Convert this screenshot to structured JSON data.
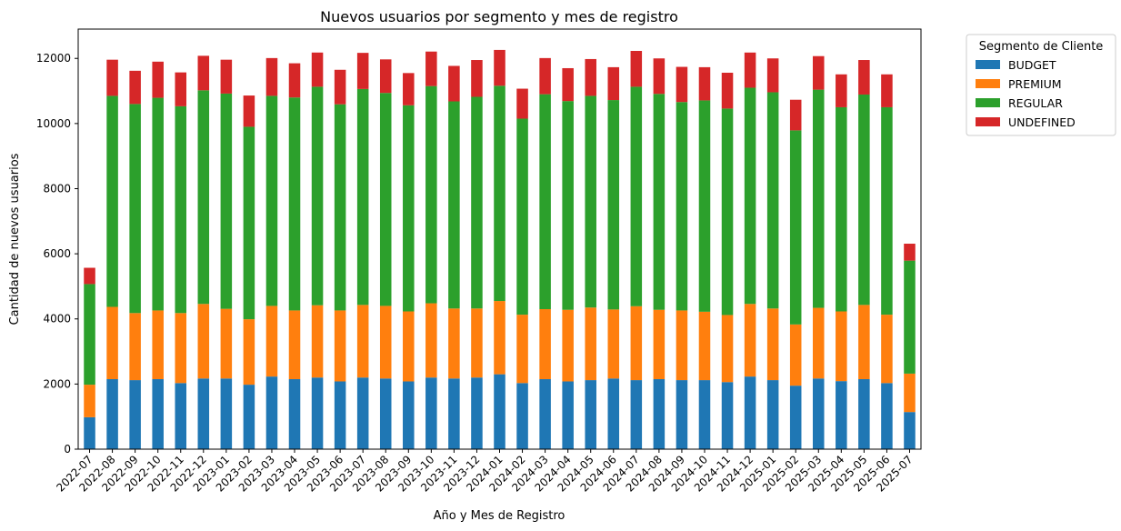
{
  "chart_data": {
    "type": "bar",
    "stacked": true,
    "title": "Nuevos usuarios por segmento y mes de registro",
    "xlabel": "Año y Mes de Registro",
    "ylabel": "Cantidad de nuevos usuarios",
    "ylim": [
      0,
      12900
    ],
    "yticks": [
      0,
      2000,
      4000,
      6000,
      8000,
      10000,
      12000
    ],
    "grid": false,
    "legend": {
      "title": "Segmento de Cliente",
      "placement": "outside-top-right"
    },
    "categories": [
      "2022-07",
      "2022-08",
      "2022-09",
      "2022-10",
      "2022-11",
      "2022-12",
      "2023-01",
      "2023-02",
      "2023-03",
      "2023-04",
      "2023-05",
      "2023-06",
      "2023-07",
      "2023-08",
      "2023-09",
      "2023-10",
      "2023-11",
      "2023-12",
      "2024-01",
      "2024-02",
      "2024-03",
      "2024-04",
      "2024-05",
      "2024-06",
      "2024-07",
      "2024-08",
      "2024-09",
      "2024-10",
      "2024-11",
      "2024-12",
      "2025-01",
      "2025-02",
      "2025-03",
      "2025-04",
      "2025-05",
      "2025-06",
      "2025-07"
    ],
    "series": [
      {
        "name": "BUDGET",
        "color": "#1f77b4",
        "values": [
          980,
          2150,
          2120,
          2150,
          2030,
          2170,
          2170,
          1980,
          2230,
          2150,
          2200,
          2080,
          2200,
          2170,
          2080,
          2200,
          2170,
          2200,
          2300,
          2030,
          2150,
          2080,
          2120,
          2170,
          2120,
          2150,
          2120,
          2120,
          2060,
          2230,
          2120,
          1950,
          2170,
          2090,
          2150,
          2030,
          1140
        ]
      },
      {
        "name": "PREMIUM",
        "color": "#ff7f0e",
        "values": [
          1000,
          2220,
          2060,
          2110,
          2150,
          2290,
          2140,
          2010,
          2170,
          2110,
          2220,
          2180,
          2230,
          2230,
          2150,
          2280,
          2150,
          2120,
          2250,
          2100,
          2150,
          2200,
          2230,
          2120,
          2270,
          2130,
          2140,
          2100,
          2060,
          2230,
          2200,
          1880,
          2170,
          2140,
          2280,
          2100,
          1180
        ]
      },
      {
        "name": "REGULAR",
        "color": "#2ca02c",
        "values": [
          3090,
          6480,
          6420,
          6530,
          6350,
          6560,
          6610,
          5910,
          6450,
          6540,
          6710,
          6330,
          6630,
          6540,
          6330,
          6670,
          6360,
          6500,
          6610,
          6020,
          6600,
          6410,
          6500,
          6430,
          6740,
          6630,
          6400,
          6490,
          6340,
          6640,
          6640,
          5960,
          6700,
          6270,
          6460,
          6370,
          3470
        ]
      },
      {
        "name": "UNDEFINED",
        "color": "#d62728",
        "values": [
          500,
          1110,
          1020,
          1110,
          1040,
          1060,
          1040,
          960,
          1160,
          1050,
          1050,
          1060,
          1110,
          1030,
          990,
          1060,
          1090,
          1130,
          1100,
          920,
          1110,
          1010,
          1130,
          1010,
          1100,
          1090,
          1080,
          1020,
          1100,
          1080,
          1040,
          940,
          1030,
          1010,
          1060,
          1010,
          520
        ]
      }
    ]
  }
}
